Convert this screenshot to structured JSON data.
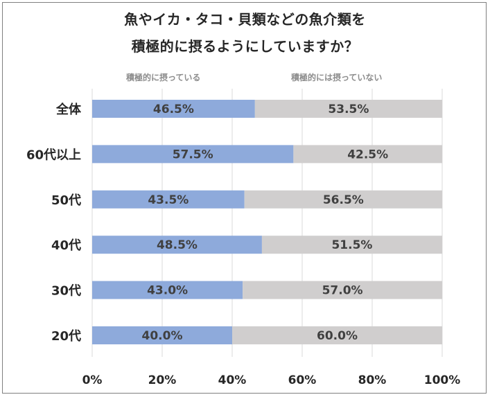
{
  "chart_data": {
    "type": "bar",
    "stacked": true,
    "orientation": "horizontal",
    "title_lines": [
      "魚やイカ・タコ・貝類などの魚介類を",
      "積極的に摂るようにしていますか？"
    ],
    "categories": [
      "全体",
      "60代以上",
      "50代",
      "40代",
      "30代",
      "20代"
    ],
    "series": [
      {
        "name": "積極的に摂っている",
        "values": [
          46.5,
          57.5,
          43.5,
          48.5,
          43.0,
          40.0
        ],
        "color": "#8eaadb"
      },
      {
        "name": "積極的には摂っていない",
        "values": [
          53.5,
          42.5,
          56.5,
          51.5,
          57.0,
          60.0
        ],
        "color": "#d0cece"
      }
    ],
    "data_labels": [
      [
        "46.5%",
        "57.5%",
        "43.5%",
        "48.5%",
        "43.0%",
        "40.0%"
      ],
      [
        "53.5%",
        "42.5%",
        "56.5%",
        "51.5%",
        "57.0%",
        "60.0%"
      ]
    ],
    "x_ticks": [
      "0%",
      "20%",
      "40%",
      "60%",
      "80%",
      "100%"
    ],
    "xlim": [
      0,
      100
    ],
    "grid": true,
    "legend_position": "top"
  }
}
